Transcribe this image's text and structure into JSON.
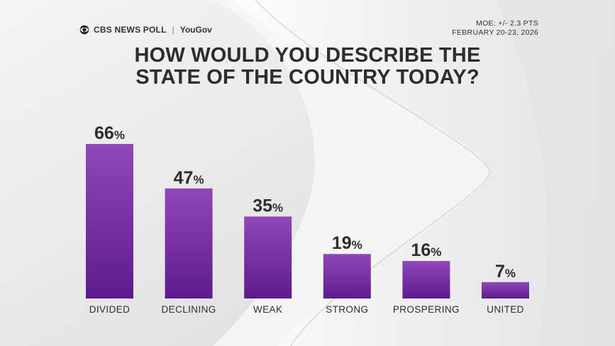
{
  "header": {
    "brand_cbs": "CBS NEWS POLL",
    "brand_partner": "YouGov",
    "moe": "MOE: +/- 2.3 PTS",
    "dates": "FEBRUARY 20-23, 2026"
  },
  "colors": {
    "bar_top": "#9048b8",
    "bar_bottom": "#5e1a8c",
    "text": "#2d2d2d"
  },
  "chart_data": {
    "type": "bar",
    "title_lines": [
      "HOW WOULD YOU DESCRIBE THE",
      "STATE OF THE COUNTRY TODAY?"
    ],
    "categories": [
      "DIVIDED",
      "DECLINING",
      "WEAK",
      "STRONG",
      "PROSPERING",
      "UNITED"
    ],
    "values": [
      66,
      47,
      35,
      19,
      16,
      7
    ],
    "value_suffix": "%",
    "ylim": [
      0,
      100
    ],
    "grid": false,
    "legend": "none"
  }
}
